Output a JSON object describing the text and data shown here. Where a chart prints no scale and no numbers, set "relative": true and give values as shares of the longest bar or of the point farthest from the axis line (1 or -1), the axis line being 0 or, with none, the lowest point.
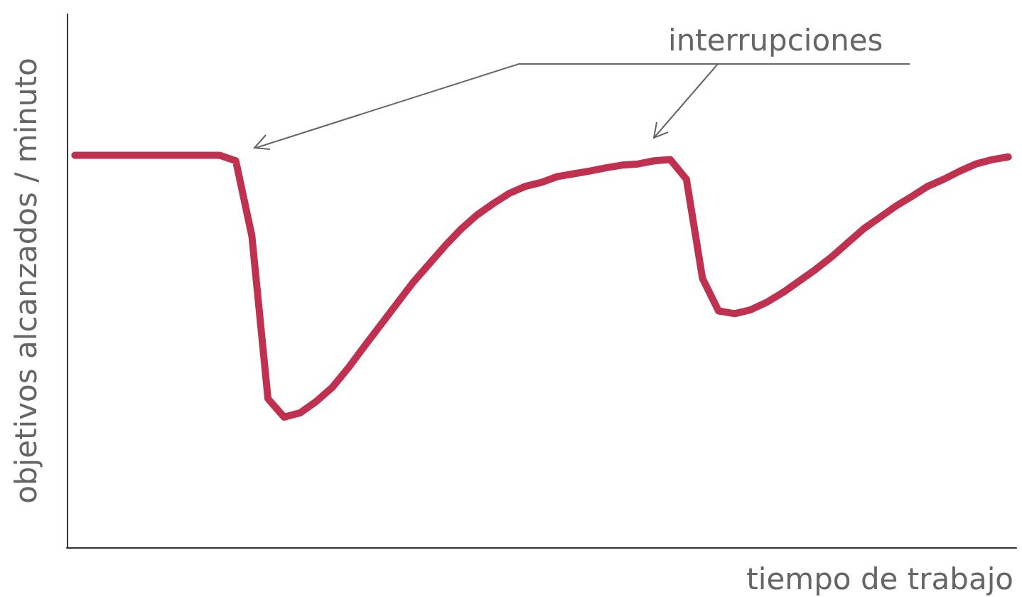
{
  "chart_data": {
    "type": "line",
    "relative": true,
    "xlabel": "tiempo de trabajo",
    "ylabel": "objetivos alcanzados / minuto",
    "annotations": [
      "interrupciones"
    ],
    "categories": [
      null,
      null,
      null,
      null,
      null,
      null,
      null,
      null,
      null,
      null,
      null,
      null,
      null,
      null,
      null,
      null,
      null,
      null,
      null,
      null,
      null,
      null,
      null,
      null,
      null,
      null,
      null,
      null,
      null,
      null,
      null,
      null,
      null,
      null,
      null,
      null,
      null,
      null,
      null,
      null,
      null,
      null,
      null,
      null,
      null,
      null,
      null,
      null,
      null,
      null,
      null,
      null,
      null,
      null,
      null,
      null,
      null,
      null,
      null
    ],
    "series": [
      {
        "color": "#c0304f",
        "values": [
          1.0,
          1.0,
          1.0,
          1.0,
          1.0,
          1.0,
          1.0,
          1.0,
          1.0,
          1.0,
          0.986,
          0.794,
          0.379,
          0.332,
          0.343,
          0.372,
          0.408,
          0.458,
          0.513,
          0.567,
          0.621,
          0.675,
          0.722,
          0.769,
          0.812,
          0.848,
          0.877,
          0.903,
          0.921,
          0.931,
          0.946,
          0.953,
          0.96,
          0.968,
          0.975,
          0.978,
          0.986,
          0.989,
          0.939,
          0.686,
          0.603,
          0.596,
          0.606,
          0.625,
          0.65,
          0.679,
          0.708,
          0.74,
          0.776,
          0.812,
          0.841,
          0.87,
          0.895,
          0.921,
          0.939,
          0.96,
          0.978,
          0.989,
          0.996
        ]
      }
    ],
    "grid": false,
    "marker": "none",
    "line_style": "solid"
  }
}
